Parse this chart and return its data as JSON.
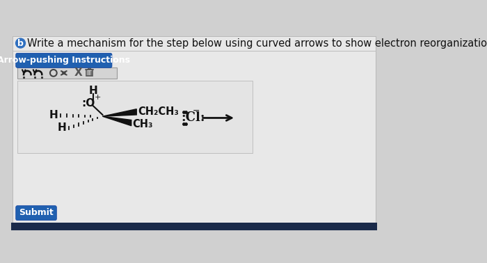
{
  "bg_color": "#d0d0d0",
  "page_color": "#e8e8e8",
  "title_text": "Write a mechanism for the step below using curved arrows to show electron reorganization.",
  "title_fontsize": 10.5,
  "btn_blue_color": "#2060b0",
  "btn_blue_text": "Arrow-pushing Instructions",
  "btn_blue_textcolor": "#ffffff",
  "submit_btn_color": "#2060b0",
  "submit_btn_text": "Submit",
  "bottom_bar_color": "#1a2a4a",
  "circle_b_text": "b",
  "toolbar_bg": "#d8d8d8",
  "chem_box_color": "#e0e0e0"
}
